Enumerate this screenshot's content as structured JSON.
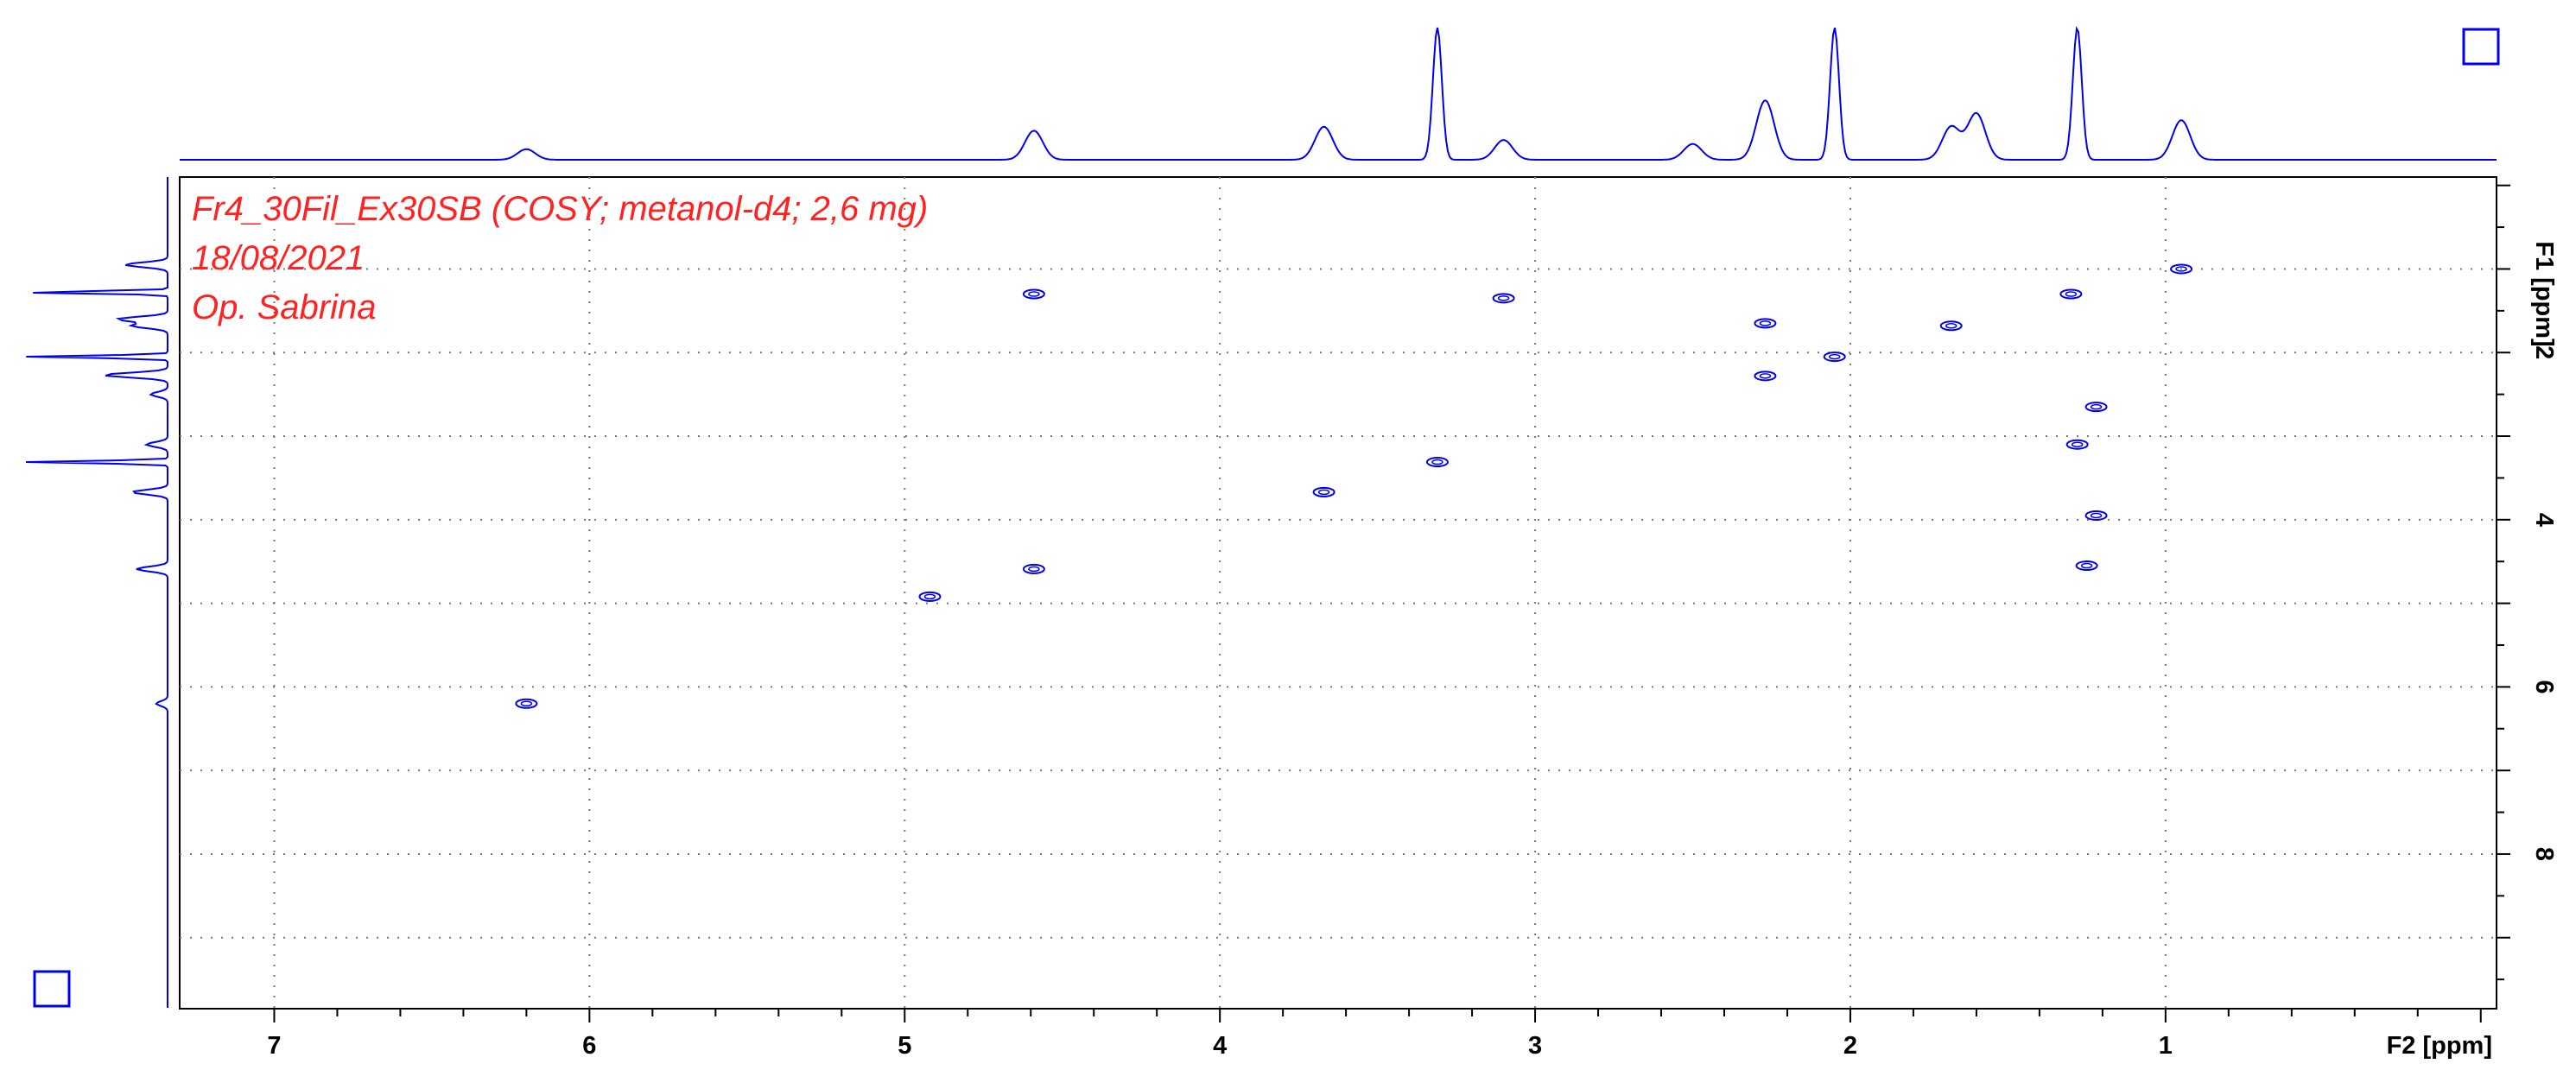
{
  "chart_data": {
    "type": "scatter",
    "subtype": "2D NMR COSY contour plot",
    "annotations": [
      "Fr4_30Fil_Ex30SB (COSY; metanol-d4; 2,6 mg)",
      "18/08/2021",
      "Op. Sabrina"
    ],
    "xlabel": "F2 [ppm]",
    "ylabel": "F1 [ppm]",
    "xlim": [
      7.3,
      -0.05
    ],
    "ylim": [
      -0.1,
      9.85
    ],
    "x_ticks": [
      "7",
      "6",
      "5",
      "4",
      "3",
      "2",
      "1"
    ],
    "y_ticks": [
      "2",
      "4",
      "6",
      "8"
    ],
    "grid": true,
    "color": "#0000ee",
    "annotation_color": "#ff2222",
    "cross_peaks": [
      {
        "x": 0.95,
        "y": 1.0
      },
      {
        "x": 1.3,
        "y": 1.3
      },
      {
        "x": 1.68,
        "y": 1.68
      },
      {
        "x": 2.05,
        "y": 2.05
      },
      {
        "x": 2.27,
        "y": 1.65
      },
      {
        "x": 2.27,
        "y": 2.28
      },
      {
        "x": 3.1,
        "y": 1.35
      },
      {
        "x": 3.31,
        "y": 3.31
      },
      {
        "x": 3.67,
        "y": 3.67
      },
      {
        "x": 4.59,
        "y": 1.3
      },
      {
        "x": 4.59,
        "y": 4.59
      },
      {
        "x": 4.92,
        "y": 4.92
      },
      {
        "x": 6.2,
        "y": 6.2
      },
      {
        "x": 1.25,
        "y": 4.55
      },
      {
        "x": 1.22,
        "y": 3.95
      },
      {
        "x": 1.22,
        "y": 2.65
      },
      {
        "x": 1.28,
        "y": 3.1
      }
    ],
    "projection_peaks": [
      {
        "ppm": 0.95,
        "intensity": 0.3
      },
      {
        "ppm": 1.28,
        "intensity": 1.0
      },
      {
        "ppm": 1.6,
        "intensity": 0.35
      },
      {
        "ppm": 1.68,
        "intensity": 0.25
      },
      {
        "ppm": 2.05,
        "intensity": 1.0
      },
      {
        "ppm": 2.27,
        "intensity": 0.45
      },
      {
        "ppm": 2.5,
        "intensity": 0.12
      },
      {
        "ppm": 3.1,
        "intensity": 0.15
      },
      {
        "ppm": 3.31,
        "intensity": 1.0
      },
      {
        "ppm": 3.67,
        "intensity": 0.25
      },
      {
        "ppm": 4.59,
        "intensity": 0.22
      },
      {
        "ppm": 6.2,
        "intensity": 0.08
      }
    ]
  }
}
